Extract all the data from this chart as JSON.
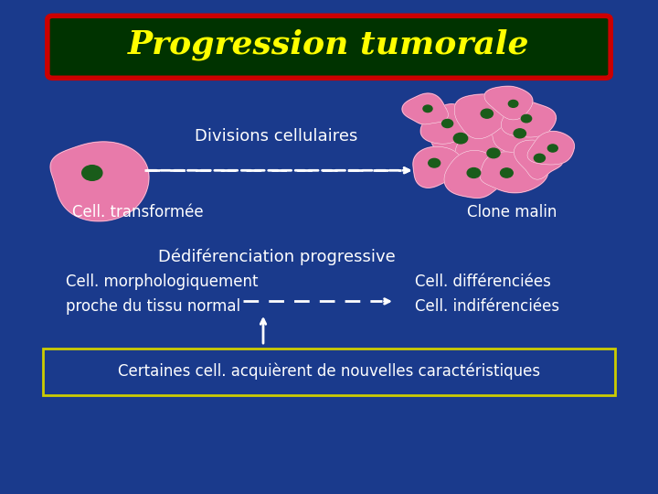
{
  "bg_color": "#1a3a8c",
  "title": "Progression tumorale",
  "title_color": "#ffff00",
  "title_bg": "#003300",
  "title_border": "#cc0000",
  "text_color": "#ffffff",
  "label1": "Divisions cellulaires",
  "label2": "Cell. transformée",
  "label3": "Clone malin",
  "label4": "Dédiférenciation progressive",
  "label5": "Cell. morphologiquement\nproche du tissu normal",
  "label6": "Cell. différenciées\nCell. indiférenciées",
  "label7": "Certaines cell. acquièrent de nouvelles caractéristiques",
  "cell_color": "#e87aaa",
  "nucleus_color": "#1a5c1a",
  "arrow_color": "#ffffff"
}
